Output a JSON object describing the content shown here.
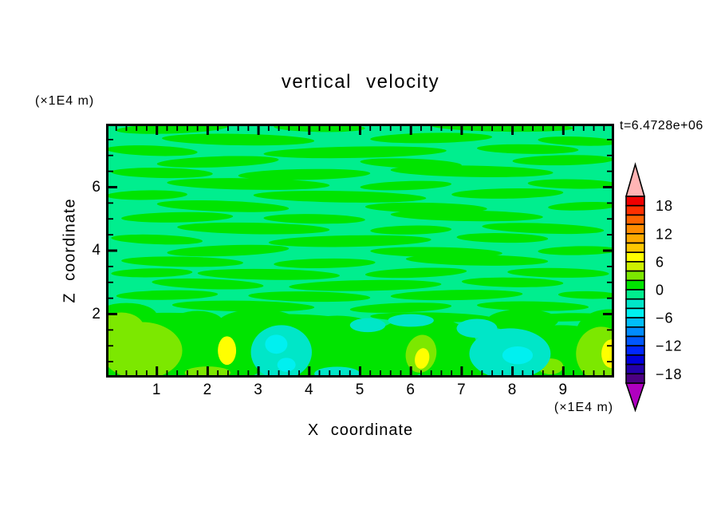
{
  "title": "vertical velocity",
  "time_label": "t=6.4728e+06",
  "axes": {
    "x": {
      "label": "X coordinate",
      "unit": "(×1E4 m)",
      "min": 0,
      "max": 10,
      "major_ticks": [
        1,
        2,
        3,
        4,
        5,
        6,
        7,
        8,
        9
      ],
      "minor_step": 0.2
    },
    "z": {
      "label": "Z coordinate",
      "unit": "(×1E4 m)",
      "min": 0,
      "max": 8,
      "major_ticks": [
        2,
        4,
        6
      ],
      "minor_step": 0.5
    }
  },
  "colorbar": {
    "tick_labels": [
      {
        "value": 18,
        "text": "18"
      },
      {
        "value": 12,
        "text": "12"
      },
      {
        "value": 6,
        "text": "6"
      },
      {
        "value": 0,
        "text": "0"
      },
      {
        "value": -6,
        "text": "−6"
      },
      {
        "value": -12,
        "text": "−12"
      },
      {
        "value": -18,
        "text": "−18"
      }
    ],
    "range": [
      -20,
      20
    ],
    "band_step": 2,
    "over_color": "#ffb4b4",
    "under_color": "#b000c0",
    "bands": [
      {
        "range": [
          18,
          20
        ],
        "color": "#f00000"
      },
      {
        "range": [
          16,
          18
        ],
        "color": "#ff3000"
      },
      {
        "range": [
          14,
          16
        ],
        "color": "#ff6400"
      },
      {
        "range": [
          12,
          14
        ],
        "color": "#ff8c00"
      },
      {
        "range": [
          10,
          12
        ],
        "color": "#ffaa00"
      },
      {
        "range": [
          8,
          10
        ],
        "color": "#ffc800"
      },
      {
        "range": [
          6,
          8
        ],
        "color": "#ffff00"
      },
      {
        "range": [
          4,
          6
        ],
        "color": "#cdf000"
      },
      {
        "range": [
          2,
          4
        ],
        "color": "#7ce800"
      },
      {
        "range": [
          0,
          2
        ],
        "color": "#00e400"
      },
      {
        "range": [
          -2,
          0
        ],
        "color": "#00ee8e"
      },
      {
        "range": [
          -4,
          -2
        ],
        "color": "#00e6c8"
      },
      {
        "range": [
          -6,
          -4
        ],
        "color": "#00f0f0"
      },
      {
        "range": [
          -8,
          -6
        ],
        "color": "#00befa"
      },
      {
        "range": [
          -10,
          -8
        ],
        "color": "#008cff"
      },
      {
        "range": [
          -12,
          -10
        ],
        "color": "#0058ff"
      },
      {
        "range": [
          -14,
          -12
        ],
        "color": "#0028ff"
      },
      {
        "range": [
          -16,
          -14
        ],
        "color": "#0000dc"
      },
      {
        "range": [
          -18,
          -16
        ],
        "color": "#2400aa"
      },
      {
        "range": [
          -20,
          -18
        ],
        "color": "#4c0082"
      }
    ]
  },
  "chart_data": {
    "type": "filled_contour",
    "title": "vertical velocity",
    "xlabel": "X coordinate (×1E4 m)",
    "ylabel": "Z coordinate (×1E4 m)",
    "time_annotation": "t=6.4728e+06",
    "x_range": [
      0,
      10
    ],
    "z_range": [
      0,
      8
    ],
    "contour_interval": 2,
    "value_range_shown": [
      -20,
      20
    ],
    "description": "Vertical velocity field: weak streaky horizontal bands alternating between 0..2 and -2..0 fill the interior; stronger cells near the lower boundary reach +6 (yellow) and -6 (cyan).",
    "background_band": -2,
    "green_streaks": [
      [
        1.3,
        7.85,
        1.1,
        0.16,
        -2
      ],
      [
        4.2,
        7.88,
        0.9,
        0.14,
        1
      ],
      [
        7.8,
        7.9,
        1.4,
        0.15,
        1
      ],
      [
        2.6,
        7.5,
        1.5,
        0.18,
        1
      ],
      [
        6.4,
        7.55,
        1.2,
        0.16,
        -1
      ],
      [
        9.3,
        7.45,
        0.8,
        0.14,
        2
      ],
      [
        0.9,
        7.15,
        0.9,
        0.16,
        2
      ],
      [
        4.9,
        7.1,
        1.8,
        0.18,
        -1
      ],
      [
        8.3,
        7.2,
        1.0,
        0.15,
        1
      ],
      [
        2.2,
        6.8,
        1.2,
        0.17,
        -2
      ],
      [
        6.0,
        6.75,
        1.0,
        0.15,
        2
      ],
      [
        9.0,
        6.85,
        1.0,
        0.16,
        -1
      ],
      [
        1.1,
        6.45,
        1.0,
        0.16,
        1
      ],
      [
        3.9,
        6.4,
        1.3,
        0.17,
        -1
      ],
      [
        7.2,
        6.5,
        1.6,
        0.18,
        1
      ],
      [
        2.8,
        6.1,
        1.6,
        0.18,
        1
      ],
      [
        5.9,
        6.05,
        0.9,
        0.14,
        -2
      ],
      [
        9.2,
        6.1,
        0.9,
        0.15,
        1
      ],
      [
        0.8,
        5.75,
        0.8,
        0.15,
        -1
      ],
      [
        4.6,
        5.7,
        1.7,
        0.18,
        1
      ],
      [
        7.9,
        5.8,
        1.1,
        0.16,
        -1
      ],
      [
        2.3,
        5.4,
        1.3,
        0.17,
        2
      ],
      [
        6.3,
        5.35,
        1.2,
        0.16,
        1
      ],
      [
        9.4,
        5.4,
        0.7,
        0.13,
        -2
      ],
      [
        1.4,
        5.05,
        1.1,
        0.16,
        -1
      ],
      [
        4.1,
        5.0,
        1.0,
        0.15,
        1
      ],
      [
        7.1,
        5.1,
        1.5,
        0.17,
        1
      ],
      [
        2.9,
        4.7,
        1.5,
        0.18,
        1
      ],
      [
        6.0,
        4.65,
        0.8,
        0.14,
        -1
      ],
      [
        8.6,
        4.7,
        1.2,
        0.16,
        2
      ],
      [
        1.0,
        4.35,
        0.9,
        0.15,
        2
      ],
      [
        4.8,
        4.3,
        1.6,
        0.18,
        -1
      ],
      [
        7.8,
        4.4,
        0.9,
        0.15,
        1
      ],
      [
        2.4,
        4.0,
        1.2,
        0.17,
        -2
      ],
      [
        6.5,
        3.95,
        1.3,
        0.16,
        1
      ],
      [
        9.3,
        4.0,
        0.8,
        0.14,
        -1
      ],
      [
        1.5,
        3.65,
        1.2,
        0.16,
        1
      ],
      [
        4.3,
        3.6,
        1.0,
        0.15,
        -1
      ],
      [
        7.3,
        3.7,
        1.4,
        0.17,
        1
      ],
      [
        0.9,
        3.3,
        0.8,
        0.14,
        -1
      ],
      [
        3.2,
        3.25,
        1.4,
        0.17,
        1
      ],
      [
        6.1,
        3.3,
        1.0,
        0.15,
        -2
      ],
      [
        8.9,
        3.3,
        1.0,
        0.15,
        1
      ],
      [
        2.0,
        2.95,
        1.1,
        0.16,
        2
      ],
      [
        5.1,
        2.9,
        1.5,
        0.17,
        -1
      ],
      [
        8.0,
        3.0,
        1.0,
        0.15,
        1
      ],
      [
        1.2,
        2.6,
        1.0,
        0.15,
        -1
      ],
      [
        4.0,
        2.55,
        1.2,
        0.16,
        1
      ],
      [
        6.9,
        2.6,
        1.3,
        0.16,
        -1
      ],
      [
        9.5,
        2.6,
        0.6,
        0.12,
        1
      ],
      [
        2.7,
        2.25,
        1.4,
        0.17,
        1
      ],
      [
        5.8,
        2.2,
        1.0,
        0.15,
        -2
      ],
      [
        8.4,
        2.25,
        1.1,
        0.15,
        1
      ],
      [
        1.1,
        1.9,
        0.9,
        0.14,
        -1
      ],
      [
        3.6,
        1.85,
        1.1,
        0.15,
        1
      ],
      [
        6.4,
        1.9,
        1.2,
        0.15,
        1
      ],
      [
        9.1,
        1.9,
        0.8,
        0.13,
        -1
      ]
    ],
    "bottom_patches": [
      [
        0.9,
        0.85,
        1.5,
        1.0,
        0,
        0
      ],
      [
        2.3,
        0.8,
        0.95,
        0.95,
        0,
        0
      ],
      [
        3.0,
        1.7,
        0.8,
        0.45,
        0,
        0
      ],
      [
        4.55,
        0.85,
        1.2,
        1.1,
        0,
        0
      ],
      [
        5.35,
        0.3,
        0.9,
        0.45,
        0,
        0
      ],
      [
        6.25,
        1.0,
        1.05,
        0.9,
        0,
        0
      ],
      [
        7.1,
        0.3,
        1.0,
        0.5,
        0,
        0
      ],
      [
        8.95,
        0.7,
        1.35,
        0.95,
        0,
        0
      ],
      [
        9.9,
        1.4,
        0.65,
        0.75,
        0,
        0
      ],
      [
        0.4,
        1.95,
        0.6,
        0.4,
        0,
        0
      ],
      [
        1.8,
        1.75,
        0.5,
        0.35,
        0,
        0
      ],
      [
        8.2,
        1.8,
        0.7,
        0.35,
        0,
        0
      ],
      [
        0.7,
        0.85,
        0.8,
        0.9,
        2,
        0
      ],
      [
        0.3,
        1.55,
        0.45,
        0.5,
        2,
        0
      ],
      [
        9.75,
        0.75,
        0.5,
        0.85,
        2,
        0
      ],
      [
        6.2,
        0.75,
        0.3,
        0.6,
        2,
        12
      ],
      [
        8.75,
        0.35,
        0.25,
        0.25,
        2,
        0
      ],
      [
        2.0,
        0.15,
        0.45,
        0.2,
        2,
        0
      ],
      [
        2.38,
        0.85,
        0.18,
        0.45,
        6,
        0
      ],
      [
        6.22,
        0.6,
        0.14,
        0.33,
        6,
        12
      ],
      [
        9.95,
        0.75,
        0.2,
        0.45,
        6,
        0
      ],
      [
        3.45,
        0.8,
        0.6,
        0.85,
        -4,
        0
      ],
      [
        7.95,
        0.75,
        0.8,
        0.8,
        -4,
        0
      ],
      [
        7.3,
        1.55,
        0.4,
        0.3,
        -4,
        0
      ],
      [
        4.55,
        0.12,
        0.45,
        0.22,
        -4,
        0
      ],
      [
        5.15,
        1.65,
        0.35,
        0.22,
        -4,
        0
      ],
      [
        6.0,
        1.8,
        0.45,
        0.2,
        -4,
        0
      ],
      [
        3.35,
        1.05,
        0.22,
        0.3,
        -6,
        0
      ],
      [
        3.55,
        0.4,
        0.18,
        0.22,
        -6,
        0
      ],
      [
        8.1,
        0.7,
        0.3,
        0.28,
        -6,
        0
      ]
    ]
  }
}
